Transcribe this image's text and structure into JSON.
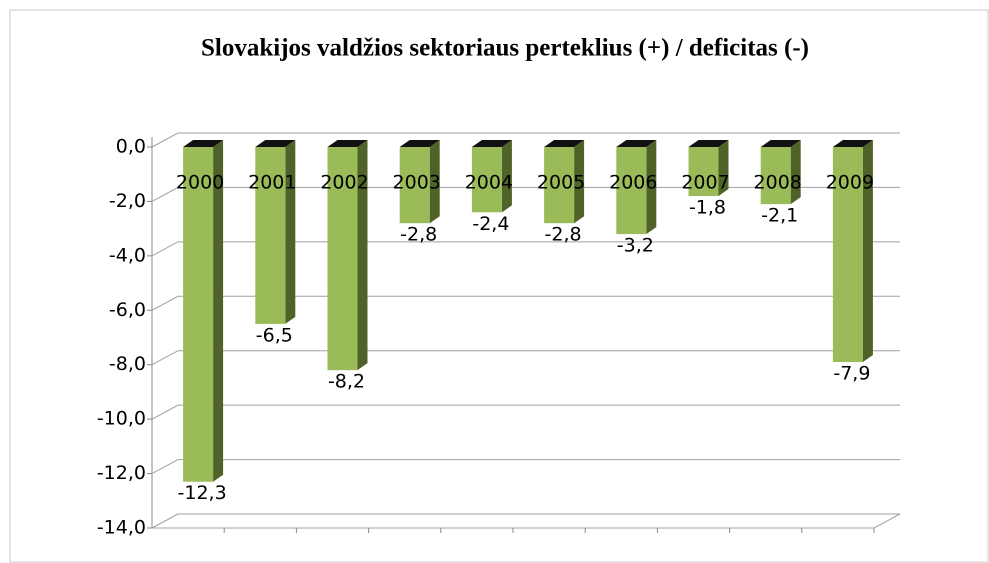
{
  "chart_data": {
    "type": "bar3d",
    "title": "Slovakijos valdžios sektoriaus perteklius (+) / deficitas (-)",
    "categories": [
      "2000",
      "2001",
      "2002",
      "2003",
      "2004",
      "2005",
      "2006",
      "2007",
      "2008",
      "2009"
    ],
    "values": [
      -12.3,
      -6.5,
      -8.2,
      -2.8,
      -2.4,
      -2.8,
      -3.2,
      -1.8,
      -2.1,
      -7.9
    ],
    "value_labels": [
      "-12,3",
      "-6,5",
      "-8,2",
      "-2,8",
      "-2,4",
      "-2,8",
      "-3,2",
      "-1,8",
      "-2,1",
      "-7,9"
    ],
    "color": "#9bbb59",
    "ylim": [
      -14,
      0
    ],
    "yticks": [
      {
        "value": 0,
        "label": "0,0"
      },
      {
        "value": -2,
        "label": "-2,0"
      },
      {
        "value": -4,
        "label": "-4,0"
      },
      {
        "value": -6,
        "label": "-6,0"
      },
      {
        "value": -8,
        "label": "-8,0"
      },
      {
        "value": -10,
        "label": "-10,0"
      },
      {
        "value": -12,
        "label": "-12,0"
      },
      {
        "value": -14,
        "label": "-14,0"
      }
    ],
    "grid": true
  }
}
